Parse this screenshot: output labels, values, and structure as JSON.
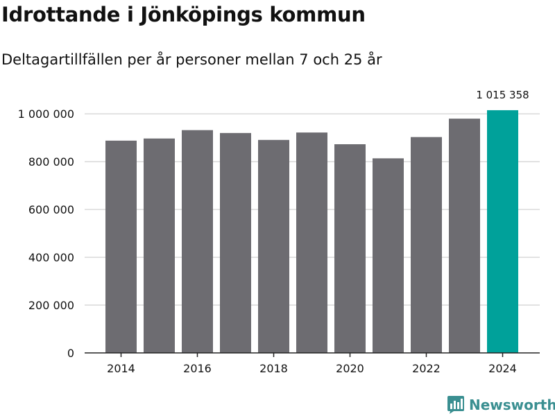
{
  "title": "Idrottande i Jönköpings kommun",
  "subtitle": "Deltagartillfällen per år personer mellan 7 och 25 år",
  "brand": "Newsworthy",
  "colors": {
    "bar": "#6d6c71",
    "highlight": "#00a19a",
    "grid": "#d9d9d9",
    "brand": "#3a8f91"
  },
  "chart_data": {
    "type": "bar",
    "categories": [
      "2014",
      "2015",
      "2016",
      "2017",
      "2018",
      "2019",
      "2020",
      "2021",
      "2022",
      "2023",
      "2024"
    ],
    "values": [
      888000,
      897000,
      932000,
      920000,
      891000,
      922000,
      873000,
      814000,
      903000,
      980000,
      1015358
    ],
    "highlight_index": 10,
    "value_label": "1 015 358",
    "xtick_labels": [
      "2014",
      "2016",
      "2018",
      "2020",
      "2022",
      "2024"
    ],
    "yticks": [
      0,
      200000,
      400000,
      600000,
      800000,
      1000000
    ],
    "ytick_labels": [
      "0",
      "200 000",
      "400 000",
      "600 000",
      "800 000",
      "1 000 000"
    ],
    "ylim": [
      0,
      1050000
    ],
    "xlabel": "",
    "ylabel": ""
  }
}
